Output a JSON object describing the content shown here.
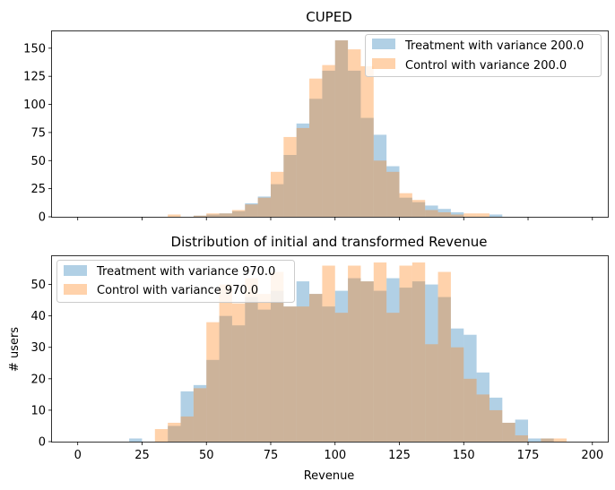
{
  "chart_data": [
    {
      "type": "bar",
      "title": "CUPED",
      "xlabel": "",
      "ylabel": "",
      "xlim": [
        -10,
        206
      ],
      "ylim": [
        0,
        165
      ],
      "x_ticks": [
        0,
        25,
        50,
        75,
        100,
        125,
        150,
        175,
        200
      ],
      "x_tick_labels_shown": false,
      "y_ticks": [
        0,
        25,
        50,
        75,
        100,
        125,
        150
      ],
      "y_tick_labels": [
        "0",
        "25",
        "50",
        "75",
        "100",
        "125",
        "150"
      ],
      "legend_position": "top-right",
      "bin_edges": [
        30,
        35,
        40,
        45,
        50,
        55,
        60,
        65,
        70,
        75,
        80,
        85,
        90,
        95,
        100,
        105,
        110,
        115,
        120,
        125,
        130,
        135,
        140,
        145,
        150,
        155,
        160,
        165
      ],
      "series": [
        {
          "name": "Treatment with variance 200.0",
          "color": "#1f77b4",
          "values": [
            0,
            0,
            0,
            1,
            2,
            3,
            5,
            12,
            18,
            29,
            55,
            83,
            105,
            130,
            157,
            130,
            88,
            73,
            45,
            17,
            13,
            10,
            7,
            4,
            0,
            0,
            2
          ]
        },
        {
          "name": "Control with variance 200.0",
          "color": "#ff7f0e",
          "values": [
            0,
            2,
            0,
            1,
            3,
            3,
            6,
            11,
            17,
            40,
            71,
            79,
            123,
            135,
            157,
            149,
            134,
            50,
            40,
            21,
            15,
            6,
            4,
            2,
            3,
            3,
            0
          ]
        }
      ]
    },
    {
      "type": "bar",
      "title": "Distribution of initial and transformed Revenue",
      "xlabel": "Revenue",
      "ylabel": "# users",
      "xlim": [
        -10,
        206
      ],
      "ylim": [
        0,
        59
      ],
      "x_ticks": [
        0,
        25,
        50,
        75,
        100,
        125,
        150,
        175,
        200
      ],
      "x_tick_labels": [
        "0",
        "25",
        "50",
        "75",
        "100",
        "125",
        "150",
        "175",
        "200"
      ],
      "y_ticks": [
        0,
        10,
        20,
        30,
        40,
        50
      ],
      "y_tick_labels": [
        "0",
        "10",
        "20",
        "30",
        "40",
        "50"
      ],
      "legend_position": "top-left",
      "bin_edges": [
        20,
        25,
        30,
        35,
        40,
        45,
        50,
        55,
        60,
        65,
        70,
        75,
        80,
        85,
        90,
        95,
        100,
        105,
        110,
        115,
        120,
        125,
        130,
        135,
        140,
        145,
        150,
        155,
        160,
        165,
        170,
        175,
        180,
        185,
        190
      ],
      "series": [
        {
          "name": "Treatment with variance 970.0",
          "color": "#1f77b4",
          "values": [
            1,
            0,
            0,
            5,
            16,
            18,
            26,
            40,
            37,
            46,
            42,
            48,
            43,
            51,
            47,
            43,
            48,
            52,
            51,
            48,
            52,
            49,
            51,
            50,
            46,
            36,
            34,
            22,
            14,
            6,
            7,
            1,
            1,
            0
          ]
        },
        {
          "name": "Control with variance 970.0",
          "color": "#ff7f0e",
          "values": [
            0,
            0,
            4,
            6,
            8,
            17,
            38,
            50,
            44,
            52,
            47,
            54,
            43,
            43,
            47,
            56,
            41,
            56,
            51,
            57,
            41,
            56,
            57,
            31,
            54,
            30,
            20,
            15,
            10,
            6,
            2,
            0,
            1,
            1
          ]
        }
      ]
    }
  ]
}
